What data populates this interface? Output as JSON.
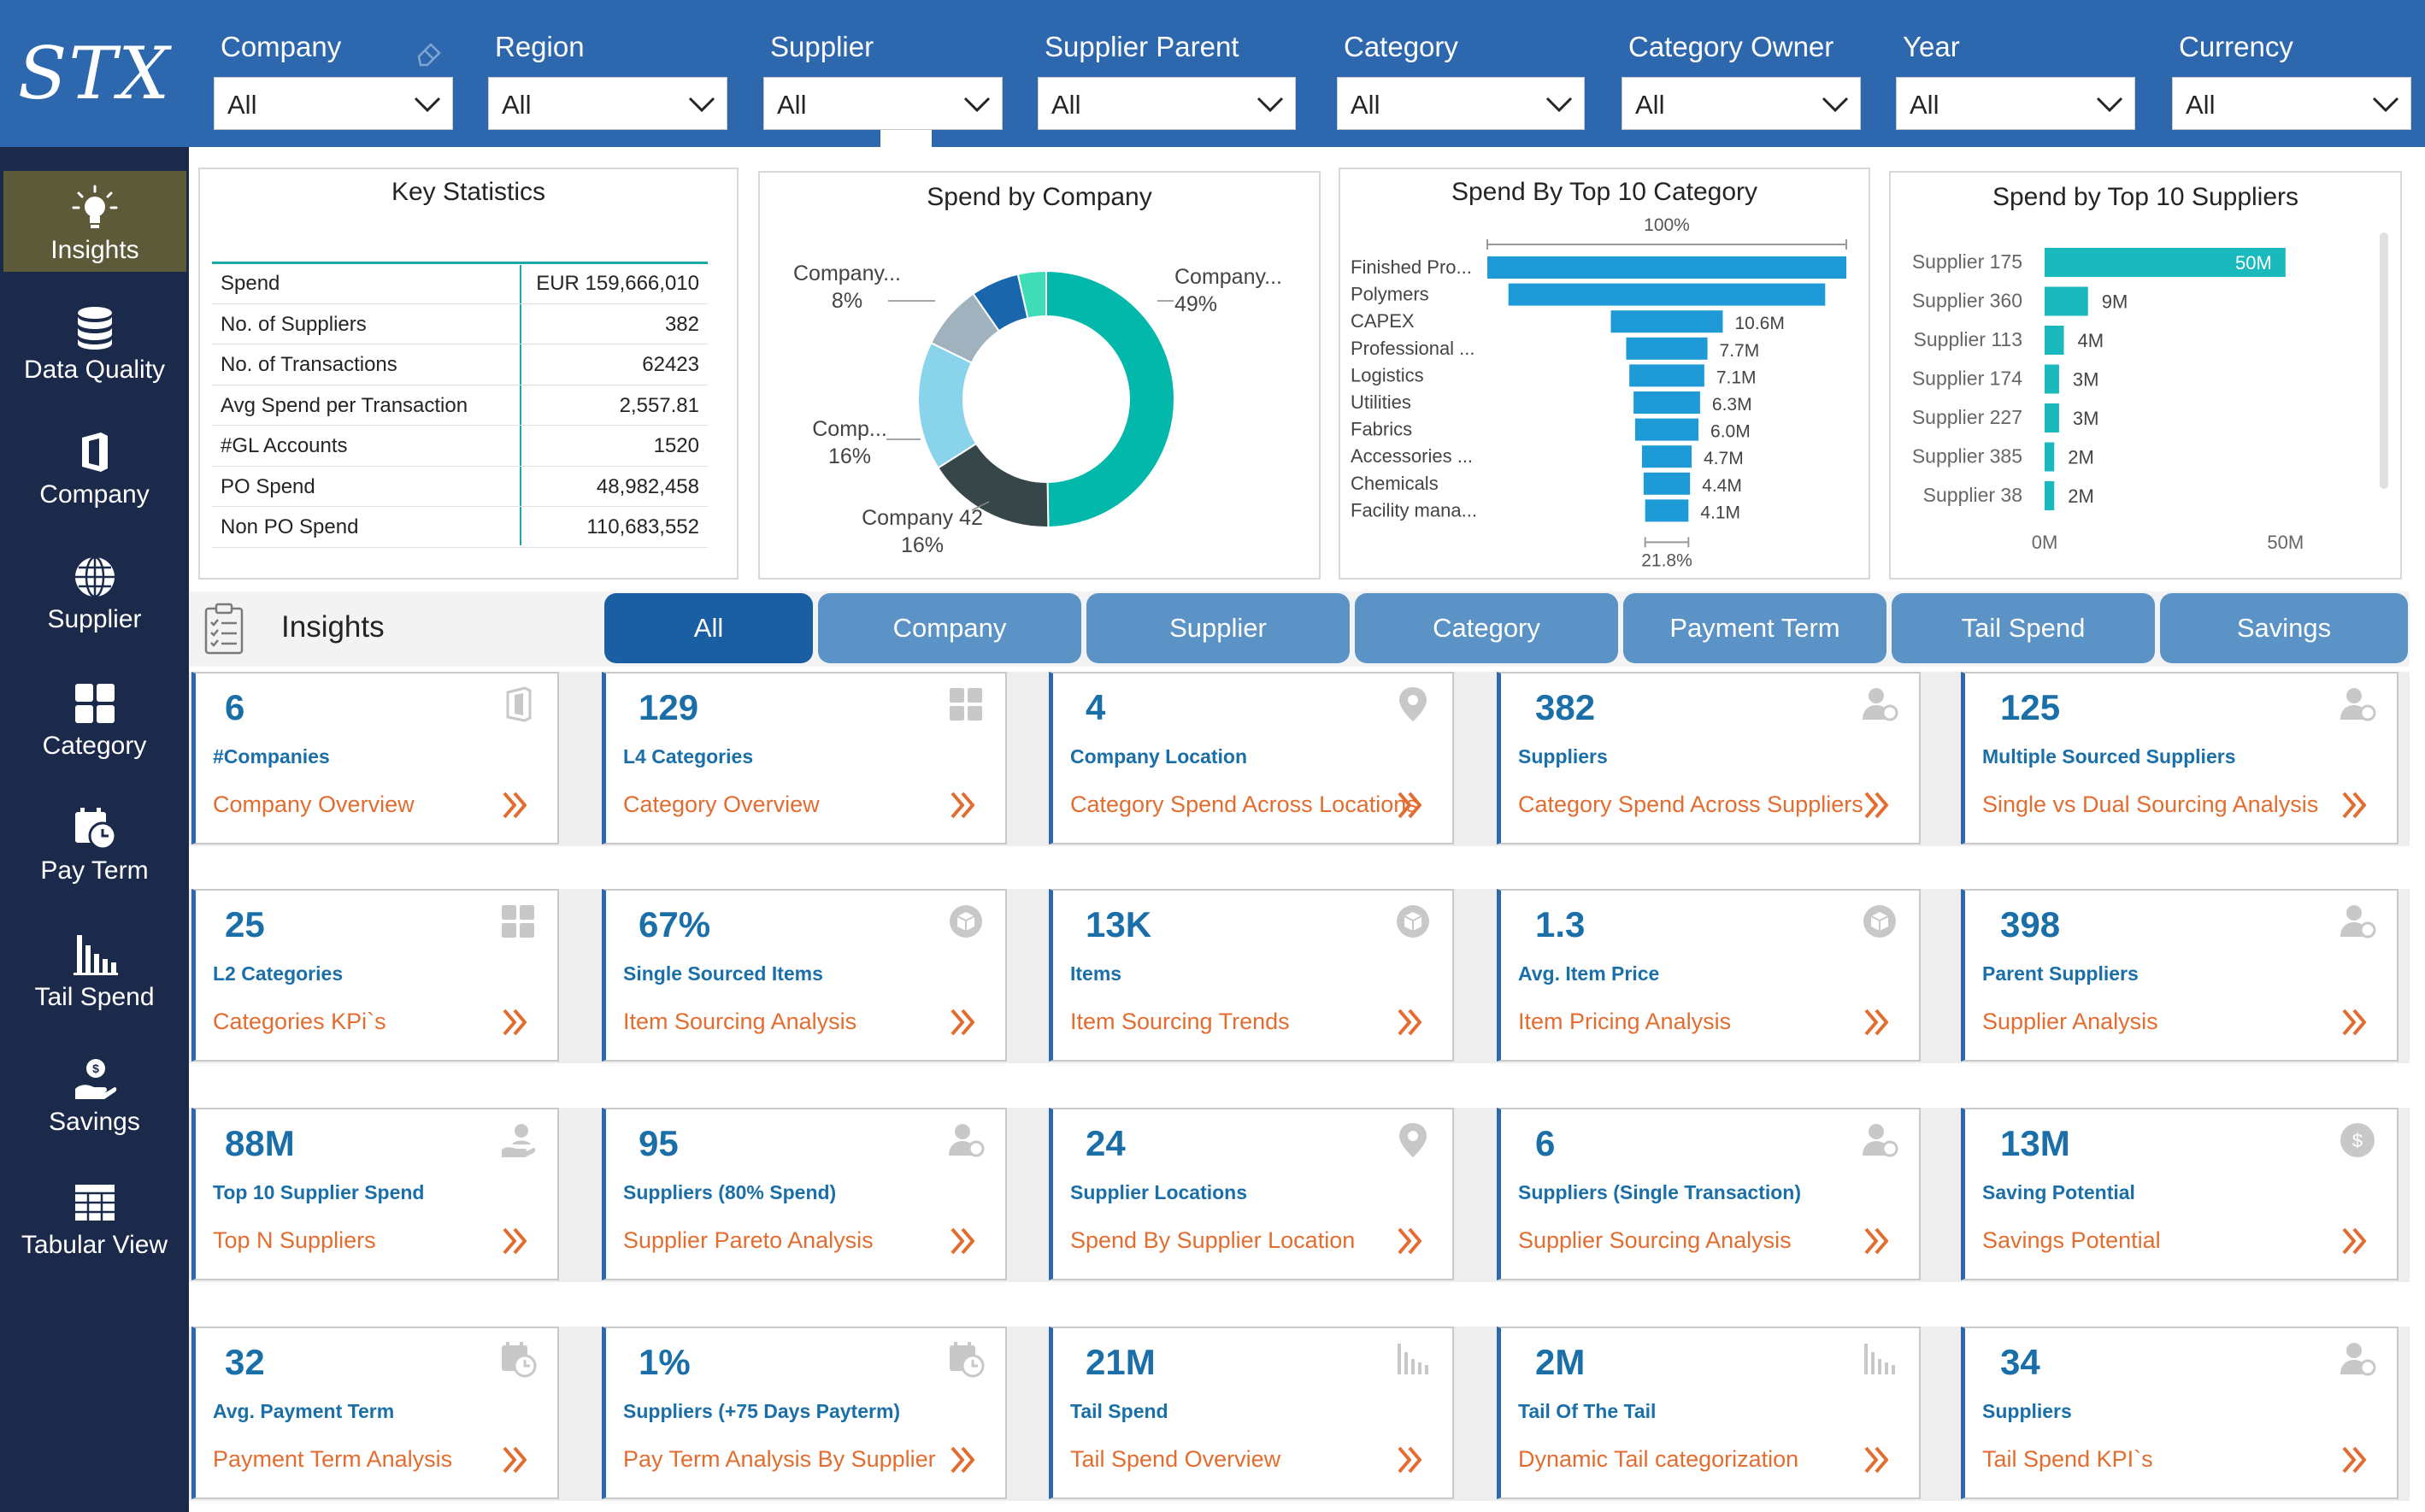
{
  "app": {
    "logo": "STX"
  },
  "sidebar": {
    "items": [
      {
        "label": "Insights",
        "icon": "lightbulb-icon",
        "active": true
      },
      {
        "label": "Data Quality",
        "icon": "database-icon"
      },
      {
        "label": "Company",
        "icon": "office-icon"
      },
      {
        "label": "Supplier",
        "icon": "globe-icon"
      },
      {
        "label": "Category",
        "icon": "grid-icon"
      },
      {
        "label": "Pay Term",
        "icon": "calendar-clock-icon"
      },
      {
        "label": "Tail Spend",
        "icon": "bar-chart-icon"
      },
      {
        "label": "Savings",
        "icon": "hand-coin-icon"
      },
      {
        "label": "Tabular View",
        "icon": "table-icon"
      }
    ]
  },
  "filters": [
    {
      "title": "Company",
      "value": "All"
    },
    {
      "title": "Region",
      "value": "All"
    },
    {
      "title": "Supplier",
      "value": "All"
    },
    {
      "title": "Supplier Parent",
      "value": "All"
    },
    {
      "title": "Category",
      "value": "All"
    },
    {
      "title": "Category Owner",
      "value": "All"
    },
    {
      "title": "Year",
      "value": "All"
    },
    {
      "title": "Currency",
      "value": "All"
    }
  ],
  "key_statistics": {
    "title": "Key Statistics",
    "rows": [
      {
        "label": "Spend",
        "value": "EUR 159,666,010"
      },
      {
        "label": "No. of Suppliers",
        "value": "382"
      },
      {
        "label": "No. of Transactions",
        "value": "62423"
      },
      {
        "label": "Avg Spend per Transaction",
        "value": "2,557.81"
      },
      {
        "label": "#GL Accounts",
        "value": "1520"
      },
      {
        "label": "PO Spend",
        "value": "48,982,458"
      },
      {
        "label": "Non PO Spend",
        "value": "110,683,552"
      }
    ]
  },
  "colors": {
    "brand_blue": "#2d67ad",
    "sidebar_navy": "#1b2a4a",
    "tile_value_blue": "#1a6fa8",
    "link_orange": "#e36c2e",
    "teal": "#1aa8a8",
    "bar_blue": "#1e9bd7"
  },
  "chart_data": [
    {
      "type": "pie",
      "title": "Spend by Company",
      "slices": [
        {
          "name": "Company...",
          "label": "49%",
          "value": 49,
          "color": "#01b8aa"
        },
        {
          "name": "Company 42",
          "label": "16%",
          "value": 16,
          "color": "#374649"
        },
        {
          "name": "Comp...",
          "label": "16%",
          "value": 16,
          "color": "#8ad4eb"
        },
        {
          "name": "Company...",
          "label": "8%",
          "value": 8,
          "color": "#a0b2be"
        },
        {
          "name": "",
          "label": "",
          "value": 6,
          "color": "#1966ad"
        },
        {
          "name": "",
          "label": "",
          "value": 3.5,
          "color": "#3fdcb8"
        }
      ]
    },
    {
      "type": "bar",
      "title": "Spend By Top 10 Category",
      "top_label": "100%",
      "bottom_label": "21.8%",
      "categories": [
        "Finished Pro...",
        "Polymers",
        "CAPEX",
        "Professional ...",
        "Logistics",
        "Utilities",
        "Fabrics",
        "Accessories ...",
        "Chemicals",
        "Facility mana..."
      ],
      "values": [
        34,
        30,
        10.6,
        7.7,
        7.1,
        6.3,
        6.0,
        4.7,
        4.4,
        4.1
      ],
      "data_labels": [
        "",
        "",
        "10.6M",
        "7.7M",
        "7.1M",
        "6.3M",
        "6.0M",
        "4.7M",
        "4.4M",
        "4.1M"
      ]
    },
    {
      "type": "bar",
      "title": "Spend by Top 10 Suppliers",
      "categories": [
        "Supplier 175",
        "Supplier 360",
        "Supplier 113",
        "Supplier 174",
        "Supplier 227",
        "Supplier 385",
        "Supplier 38"
      ],
      "values": [
        50,
        9,
        4,
        3,
        3,
        2,
        2
      ],
      "data_labels": [
        "50M",
        "9M",
        "4M",
        "3M",
        "3M",
        "2M",
        "2M"
      ],
      "xticks": [
        "0M",
        "50M"
      ],
      "xlim": [
        0,
        55
      ]
    }
  ],
  "insights": {
    "label": "Insights",
    "tabs": [
      "All",
      "Company",
      "Supplier",
      "Category",
      "Payment Term",
      "Tail Spend",
      "Savings"
    ],
    "tiles": [
      {
        "value": "6",
        "label": "#Companies",
        "link": "Company Overview",
        "icon": "office-icon"
      },
      {
        "value": "129",
        "label": "L4 Categories",
        "link": "Category Overview",
        "icon": "grid-icon"
      },
      {
        "value": "4",
        "label": "Company Location",
        "link": "Category Spend Across Locations",
        "icon": "location-pin-icon"
      },
      {
        "value": "382",
        "label": "Suppliers",
        "link": "Category Spend Across Suppliers",
        "icon": "supplier-icon"
      },
      {
        "value": "125",
        "label": "Multiple Sourced Suppliers",
        "link": "Single vs Dual Sourcing Analysis",
        "icon": "supplier-icon"
      },
      {
        "value": "25",
        "label": "L2 Categories",
        "link": "Categories KPi`s",
        "icon": "grid-icon"
      },
      {
        "value": "67%",
        "label": "Single Sourced Items",
        "link": "Item Sourcing Analysis",
        "icon": "item-box-icon"
      },
      {
        "value": "13K",
        "label": "Items",
        "link": "Item Sourcing Trends",
        "icon": "item-box-icon"
      },
      {
        "value": "1.3",
        "label": "Avg. Item Price",
        "link": "Item Pricing Analysis",
        "icon": "item-box-icon"
      },
      {
        "value": "398",
        "label": "Parent Suppliers",
        "link": "Supplier Analysis",
        "icon": "supplier-icon"
      },
      {
        "value": "88M",
        "label": "Top 10 Supplier Spend",
        "link": "Top N Suppliers",
        "icon": "user-hand-icon"
      },
      {
        "value": "95",
        "label": "Suppliers (80% Spend)",
        "link": "Supplier Pareto Analysis",
        "icon": "supplier-icon"
      },
      {
        "value": "24",
        "label": "Supplier Locations",
        "link": "Spend By Supplier Location",
        "icon": "location-pin-icon"
      },
      {
        "value": "6",
        "label": "Suppliers (Single Transaction)",
        "link": "Supplier Sourcing Analysis",
        "icon": "supplier-icon"
      },
      {
        "value": "13M",
        "label": "Saving Potential",
        "link": "Savings Potential",
        "icon": "dollar-coin-icon"
      },
      {
        "value": "32",
        "label": "Avg. Payment Term",
        "link": "Payment Term Analysis",
        "icon": "calendar-clock-icon"
      },
      {
        "value": "1%",
        "label": "Suppliers (+75 Days Payterm)",
        "link": "Pay Term Analysis By Supplier",
        "icon": "calendar-clock-icon"
      },
      {
        "value": "21M",
        "label": "Tail Spend",
        "link": "Tail Spend Overview",
        "icon": "bar-chart-icon"
      },
      {
        "value": "2M",
        "label": "Tail Of The Tail",
        "link": "Dynamic Tail categorization",
        "icon": "bar-chart-icon"
      },
      {
        "value": "34",
        "label": "Suppliers",
        "link": "Tail Spend KPI`s",
        "icon": "supplier-icon"
      }
    ]
  }
}
